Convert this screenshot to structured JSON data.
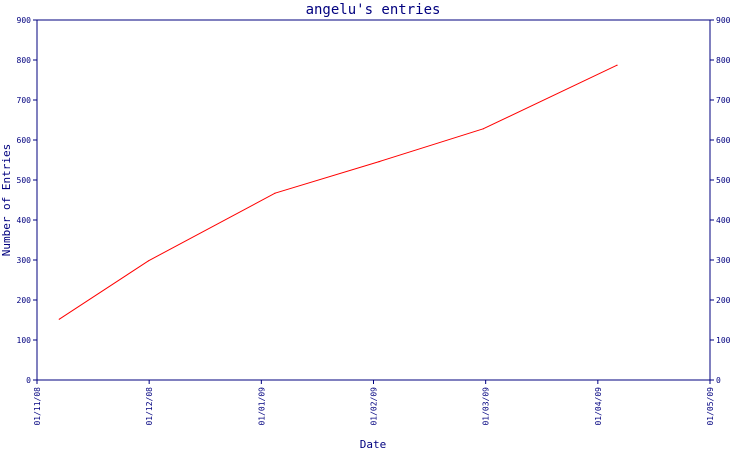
{
  "chart_data": {
    "type": "line",
    "title": "angelu's entries",
    "xlabel": "Date",
    "ylabel": "Number of Entries",
    "x_ticks": [
      "01/11/08",
      "01/12/08",
      "01/01/09",
      "01/02/09",
      "01/03/09",
      "01/04/09",
      "01/05/09"
    ],
    "y_ticks": [
      "0",
      "100",
      "200",
      "300",
      "400",
      "500",
      "600",
      "700",
      "800",
      "900"
    ],
    "ylim": [
      0,
      900
    ],
    "xlim": [
      "2008-11-01",
      "2009-05-01"
    ],
    "grid": false,
    "series": [
      {
        "x": [
          "2008-11-07",
          "2008-12-01",
          "2009-01-04",
          "2009-02-01",
          "2009-03-01",
          "2009-04-06"
        ],
        "y": [
          152,
          298,
          467,
          546,
          628,
          787
        ]
      }
    ],
    "colors": {
      "axis": "#00007f",
      "line": "#ff0000",
      "background": "#ffffff"
    }
  }
}
